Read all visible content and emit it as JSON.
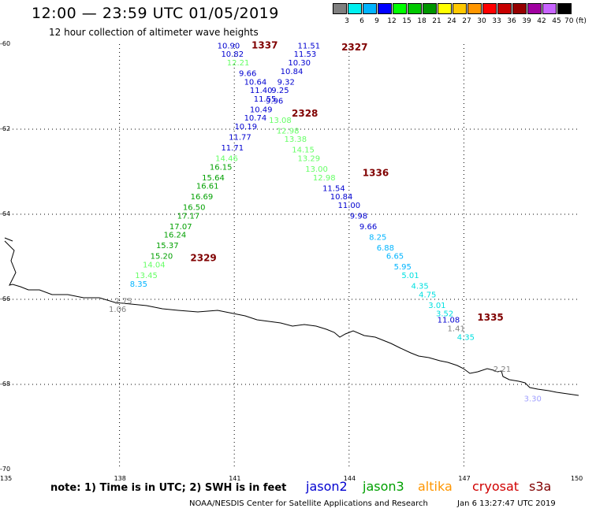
{
  "title": "12:00 — 23:59 UTC 01/05/2019",
  "subtitle": "12 hour collection of altimeter wave heights",
  "scale": {
    "labels": [
      "3",
      "6",
      "9",
      "12",
      "15",
      "18",
      "21",
      "24",
      "27",
      "30",
      "33",
      "36",
      "39",
      "42",
      "45",
      "70 (ft)"
    ],
    "colors": [
      "#808080",
      "#00f0f0",
      "#00b4ff",
      "#0000ff",
      "#00ff00",
      "#00c800",
      "#009600",
      "#ffff00",
      "#ffc800",
      "#ff9600",
      "#ff0000",
      "#c80000",
      "#960000",
      "#a000a0",
      "#c864ff",
      "#000000"
    ]
  },
  "lon_labels": [
    "135",
    "138",
    "141",
    "144",
    "147",
    "150"
  ],
  "lat_labels": [
    "-60",
    "-62",
    "-64",
    "-66",
    "-68",
    "-70"
  ],
  "note": "note:  1) Time is in UTC;  2) SWH is in feet",
  "legend": {
    "jason2": {
      "label": "jason2",
      "color": "#0000d0"
    },
    "jason3": {
      "label": "jason3",
      "color": "#00a000"
    },
    "altika": {
      "label": "altika",
      "color": "#ff9600"
    },
    "cryosat": {
      "label": "cryosat",
      "color": "#d00000"
    },
    "s3a": {
      "label": "s3a",
      "color": "#800000"
    }
  },
  "credit_left": "NOAA/NESDIS Center for Satellite Applications and Research",
  "credit_right": "Jan  6 13:27:47 UTC 2019",
  "map": {
    "lon_range": [
      135,
      150
    ],
    "lat_range": [
      -70,
      -60
    ],
    "time_labels": [
      {
        "text": "1337",
        "lon": 141.45,
        "lat": -60.1
      },
      {
        "text": "2327",
        "lon": 143.8,
        "lat": -60.15
      },
      {
        "text": "2328",
        "lon": 142.5,
        "lat": -61.7
      },
      {
        "text": "1336",
        "lon": 144.35,
        "lat": -63.1
      },
      {
        "text": "2329",
        "lon": 139.85,
        "lat": -65.1
      },
      {
        "text": "1335",
        "lon": 147.35,
        "lat": -66.5
      }
    ],
    "points": [
      {
        "v": "10.90",
        "lon": 140.85,
        "lat": -60.1,
        "c": "#0000d0"
      },
      {
        "v": "10.82",
        "lon": 140.95,
        "lat": -60.3,
        "c": "#0000d0"
      },
      {
        "v": "12.21",
        "lon": 141.1,
        "lat": -60.5,
        "c": "#66ff66"
      },
      {
        "v": "9.66",
        "lon": 141.35,
        "lat": -60.75,
        "c": "#0000d0"
      },
      {
        "v": "10.64",
        "lon": 141.55,
        "lat": -60.95,
        "c": "#0000d0"
      },
      {
        "v": "11.40",
        "lon": 141.7,
        "lat": -61.15,
        "c": "#0000d0"
      },
      {
        "v": "11.55",
        "lon": 141.8,
        "lat": -61.35,
        "c": "#0000d0"
      },
      {
        "v": "10.49",
        "lon": 141.7,
        "lat": -61.6,
        "c": "#0000d0"
      },
      {
        "v": "10.74",
        "lon": 141.55,
        "lat": -61.8,
        "c": "#0000d0"
      },
      {
        "v": "10.19",
        "lon": 141.3,
        "lat": -62.0,
        "c": "#0000d0"
      },
      {
        "v": "11.77",
        "lon": 141.15,
        "lat": -62.25,
        "c": "#0000d0"
      },
      {
        "v": "11.71",
        "lon": 140.95,
        "lat": -62.5,
        "c": "#0000d0"
      },
      {
        "v": "14.46",
        "lon": 140.8,
        "lat": -62.75,
        "c": "#66ff66"
      },
      {
        "v": "16.15",
        "lon": 140.65,
        "lat": -62.95,
        "c": "#00a000"
      },
      {
        "v": "15.64",
        "lon": 140.45,
        "lat": -63.2,
        "c": "#00a000"
      },
      {
        "v": "16.61",
        "lon": 140.3,
        "lat": -63.4,
        "c": "#00a000"
      },
      {
        "v": "16.69",
        "lon": 140.15,
        "lat": -63.65,
        "c": "#00a000"
      },
      {
        "v": "16.50",
        "lon": 139.95,
        "lat": -63.9,
        "c": "#00a000"
      },
      {
        "v": "17.17",
        "lon": 139.8,
        "lat": -64.1,
        "c": "#00a000"
      },
      {
        "v": "17.07",
        "lon": 139.6,
        "lat": -64.35,
        "c": "#00a000"
      },
      {
        "v": "16.24",
        "lon": 139.45,
        "lat": -64.55,
        "c": "#00a000"
      },
      {
        "v": "15.37",
        "lon": 139.25,
        "lat": -64.8,
        "c": "#00a000"
      },
      {
        "v": "15.20",
        "lon": 139.1,
        "lat": -65.05,
        "c": "#00a000"
      },
      {
        "v": "14.04",
        "lon": 138.9,
        "lat": -65.25,
        "c": "#66ff66"
      },
      {
        "v": "13.45",
        "lon": 138.7,
        "lat": -65.5,
        "c": "#66ff66"
      },
      {
        "v": "8.35",
        "lon": 138.5,
        "lat": -65.7,
        "c": "#00b4ff"
      },
      {
        "v": "11.51",
        "lon": 142.95,
        "lat": -60.1,
        "c": "#0000d0"
      },
      {
        "v": "11.53",
        "lon": 142.85,
        "lat": -60.3,
        "c": "#0000d0"
      },
      {
        "v": "10.30",
        "lon": 142.7,
        "lat": -60.5,
        "c": "#0000d0"
      },
      {
        "v": "10.84",
        "lon": 142.5,
        "lat": -60.7,
        "c": "#0000d0"
      },
      {
        "v": "9.32",
        "lon": 142.35,
        "lat": -60.95,
        "c": "#0000d0"
      },
      {
        "v": "9.25",
        "lon": 142.2,
        "lat": -61.15,
        "c": "#0000d0"
      },
      {
        "v": "9.96",
        "lon": 142.05,
        "lat": -61.4,
        "c": "#0000d0"
      },
      {
        "v": "13.08",
        "lon": 142.2,
        "lat": -61.85,
        "c": "#66ff66"
      },
      {
        "v": "12.98",
        "lon": 142.4,
        "lat": -62.1,
        "c": "#66ff66"
      },
      {
        "v": "13.38",
        "lon": 142.6,
        "lat": -62.3,
        "c": "#66ff66"
      },
      {
        "v": "14.15",
        "lon": 142.8,
        "lat": -62.55,
        "c": "#66ff66"
      },
      {
        "v": "13.29",
        "lon": 142.95,
        "lat": -62.75,
        "c": "#66ff66"
      },
      {
        "v": "13.00",
        "lon": 143.15,
        "lat": -63.0,
        "c": "#66ff66"
      },
      {
        "v": "12.98",
        "lon": 143.35,
        "lat": -63.2,
        "c": "#66ff66"
      },
      {
        "v": "11.54",
        "lon": 143.6,
        "lat": -63.45,
        "c": "#0000d0"
      },
      {
        "v": "10.84",
        "lon": 143.8,
        "lat": -63.65,
        "c": "#0000d0"
      },
      {
        "v": "11.00",
        "lon": 144.0,
        "lat": -63.85,
        "c": "#0000d0"
      },
      {
        "v": "9.98",
        "lon": 144.25,
        "lat": -64.1,
        "c": "#0000d0"
      },
      {
        "v": "9.66",
        "lon": 144.5,
        "lat": -64.35,
        "c": "#0000d0"
      },
      {
        "v": "8.25",
        "lon": 144.75,
        "lat": -64.6,
        "c": "#00b4ff"
      },
      {
        "v": "6.88",
        "lon": 144.95,
        "lat": -64.85,
        "c": "#00b4ff"
      },
      {
        "v": "6.65",
        "lon": 145.2,
        "lat": -65.05,
        "c": "#00b4ff"
      },
      {
        "v": "5.95",
        "lon": 145.4,
        "lat": -65.3,
        "c": "#00b4ff"
      },
      {
        "v": "5.01",
        "lon": 145.6,
        "lat": -65.5,
        "c": "#00e0e0"
      },
      {
        "v": "4.35",
        "lon": 145.85,
        "lat": -65.75,
        "c": "#00e0e0"
      },
      {
        "v": "4.75",
        "lon": 146.05,
        "lat": -65.95,
        "c": "#00e0e0"
      },
      {
        "v": "3.01",
        "lon": 146.3,
        "lat": -66.2,
        "c": "#00e0e0"
      },
      {
        "v": "3.52",
        "lon": 146.5,
        "lat": -66.4,
        "c": "#00e0e0"
      },
      {
        "v": "11.08",
        "lon": 146.6,
        "lat": -66.55,
        "c": "#0000d0"
      },
      {
        "v": "1.41",
        "lon": 146.8,
        "lat": -66.75,
        "c": "#808080"
      },
      {
        "v": "4.35",
        "lon": 147.05,
        "lat": -66.95,
        "c": "#00e0e0"
      },
      {
        "v": "2.75",
        "lon": 138.1,
        "lat": -66.1,
        "c": "#808080"
      },
      {
        "v": "1.06",
        "lon": 137.95,
        "lat": -66.3,
        "c": "#808080"
      },
      {
        "v": "2.21",
        "lon": 148.0,
        "lat": -67.7,
        "c": "#808080"
      },
      {
        "v": "3.30",
        "lon": 148.8,
        "lat": -68.4,
        "c": "#a0a0ff"
      }
    ]
  }
}
